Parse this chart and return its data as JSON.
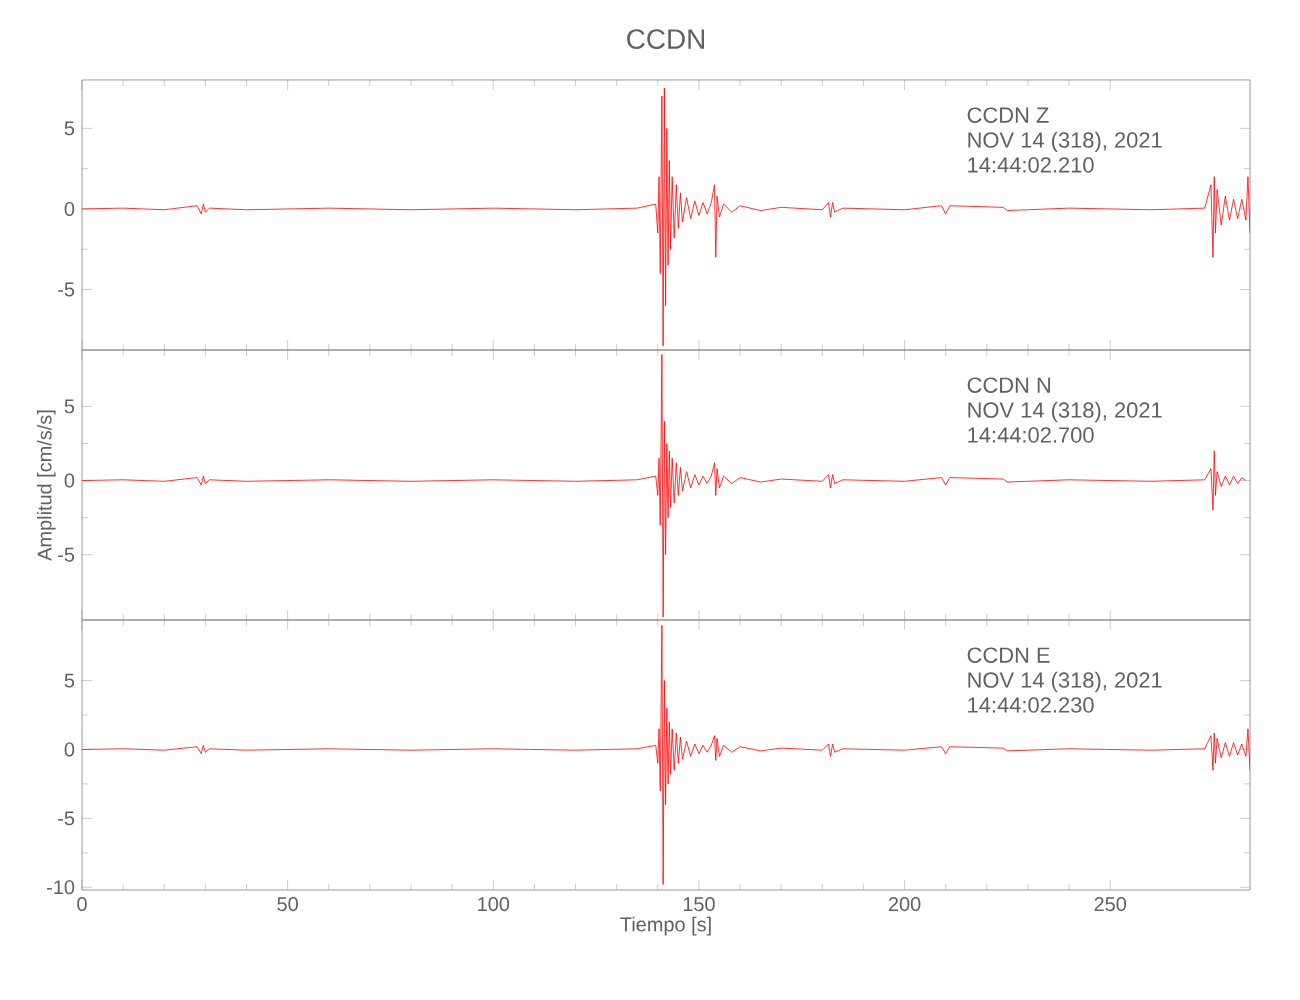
{
  "chart_data": [
    {
      "type": "line",
      "title": "CCDN",
      "annotations": [
        "CCDN Z",
        "NOV 14 (318), 2021",
        "14:44:02.210"
      ],
      "color": "#ff0000",
      "xlim": [
        0,
        284
      ],
      "ylim": [
        -8.75,
        8
      ],
      "xticks": [
        0,
        50,
        100,
        150,
        200,
        250
      ],
      "yticks": [
        -5,
        0,
        5
      ],
      "tick_labels": "y",
      "grid": false,
      "x": [
        0,
        10,
        20,
        28,
        29,
        29.5,
        30,
        31,
        40,
        60,
        80,
        100,
        120,
        135,
        139.5,
        140,
        140.3,
        140.6,
        141,
        141.3,
        141.6,
        141.9,
        142.2,
        142.5,
        142.8,
        143.1,
        143.5,
        144,
        144.5,
        145,
        145.5,
        146,
        147,
        148,
        149,
        150,
        151,
        152,
        153,
        153.8,
        154.1,
        154.4,
        155,
        156,
        158,
        160,
        165,
        170,
        180,
        181.5,
        182,
        182.5,
        183,
        185,
        200,
        209,
        210,
        211,
        224,
        225,
        240,
        260,
        273,
        274.5,
        275,
        275.3,
        275.6,
        276,
        277,
        278,
        279,
        280,
        281,
        282,
        283,
        283.5,
        284
      ],
      "values": [
        0,
        0.05,
        -0.05,
        0.2,
        -0.3,
        0.3,
        -0.2,
        0.05,
        -0.05,
        0.05,
        -0.05,
        0.05,
        -0.05,
        0.05,
        0.3,
        -1.5,
        2,
        -4,
        7,
        -8.5,
        7.5,
        -6,
        5,
        -3.5,
        3,
        -2.5,
        2,
        -1.8,
        1.5,
        -1.2,
        1,
        -0.8,
        0.7,
        -0.6,
        0.5,
        -0.4,
        0.4,
        -0.3,
        0.4,
        1.5,
        -3,
        0.8,
        -0.5,
        0.3,
        -0.2,
        0.2,
        -0.1,
        0.1,
        -0.05,
        0.4,
        -0.5,
        0.4,
        -0.2,
        0.05,
        -0.05,
        0.2,
        -0.3,
        0.2,
        0.1,
        -0.1,
        0.05,
        -0.05,
        0.05,
        1.5,
        -3,
        2,
        -1.5,
        1.2,
        -1,
        0.8,
        -0.7,
        0.6,
        -0.6,
        0.6,
        -0.7,
        2,
        -1.5
      ]
    },
    {
      "type": "line",
      "ylabel": "Amplitud [cm/s/s]",
      "annotations": [
        "CCDN N",
        "NOV 14 (318), 2021",
        "14:44:02.700"
      ],
      "color": "#ff0000",
      "xlim": [
        0,
        284
      ],
      "ylim": [
        -9.4,
        8.8
      ],
      "xticks": [
        0,
        50,
        100,
        150,
        200,
        250
      ],
      "yticks": [
        -5,
        0,
        5
      ],
      "tick_labels": "y",
      "grid": false,
      "x": [
        0,
        10,
        20,
        28,
        29,
        29.5,
        30,
        31,
        40,
        60,
        80,
        100,
        120,
        135,
        139.5,
        140,
        140.3,
        140.6,
        141,
        141.3,
        141.6,
        141.9,
        142.2,
        142.5,
        142.8,
        143.1,
        143.5,
        144,
        144.5,
        145,
        145.5,
        146,
        147,
        148,
        149,
        150,
        151,
        152,
        153,
        153.8,
        154.1,
        154.4,
        155,
        156,
        158,
        160,
        165,
        170,
        180,
        181.5,
        182,
        182.5,
        183,
        185,
        200,
        209,
        210,
        211,
        224,
        225,
        240,
        260,
        273,
        274.5,
        275,
        275.3,
        275.6,
        276,
        277,
        278,
        279,
        280,
        281,
        282,
        283
      ],
      "values": [
        0,
        0.05,
        -0.05,
        0.2,
        -0.3,
        0.3,
        -0.2,
        0.05,
        -0.05,
        0.05,
        -0.05,
        0.05,
        -0.05,
        0.05,
        0.3,
        -1,
        1.5,
        -3,
        8.5,
        -9.2,
        4,
        -5,
        2.5,
        -2.5,
        2,
        -1.8,
        1.5,
        -1.5,
        1.2,
        -1,
        0.9,
        -0.7,
        0.6,
        -0.5,
        0.4,
        -0.3,
        0.3,
        -0.2,
        0.3,
        1.2,
        -1,
        0.8,
        -0.5,
        0.3,
        -0.2,
        0.2,
        -0.1,
        0.1,
        -0.05,
        0.4,
        -0.5,
        0.4,
        -0.2,
        0.05,
        -0.05,
        0.2,
        -0.3,
        0.2,
        0.1,
        -0.1,
        0.05,
        -0.05,
        0.05,
        0.8,
        -2,
        2,
        -1,
        0.6,
        -0.4,
        0.3,
        -0.3,
        0.3,
        -0.2,
        0.2,
        0
      ]
    },
    {
      "type": "line",
      "xlabel": "Tiempo [s]",
      "annotations": [
        "CCDN E",
        "NOV 14 (318), 2021",
        "14:44:02.230"
      ],
      "color": "#ff0000",
      "xlim": [
        0,
        284
      ],
      "ylim": [
        -10.2,
        9.4
      ],
      "xticks": [
        0,
        50,
        100,
        150,
        200,
        250
      ],
      "yticks": [
        -10,
        -5,
        0,
        5
      ],
      "grid": false,
      "x": [
        0,
        10,
        20,
        28,
        29,
        29.5,
        30,
        31,
        40,
        60,
        80,
        100,
        120,
        135,
        139.5,
        140,
        140.3,
        140.6,
        141,
        141.3,
        141.6,
        141.9,
        142.2,
        142.5,
        142.8,
        143.1,
        143.5,
        144,
        144.5,
        145,
        145.5,
        146,
        147,
        148,
        149,
        150,
        151,
        152,
        153,
        153.8,
        154.1,
        154.4,
        155,
        156,
        158,
        160,
        165,
        170,
        180,
        181.5,
        182,
        182.5,
        183,
        185,
        200,
        209,
        210,
        211,
        224,
        225,
        240,
        260,
        273,
        274.5,
        275,
        275.3,
        275.6,
        276,
        277,
        278,
        279,
        280,
        281,
        282,
        283,
        283.5,
        284
      ],
      "values": [
        0,
        0.05,
        -0.05,
        0.2,
        -0.3,
        0.3,
        -0.2,
        0.05,
        -0.05,
        0.05,
        -0.05,
        0.05,
        -0.05,
        0.05,
        0.3,
        -1,
        1.5,
        -3,
        9,
        -9.8,
        5,
        -4,
        3,
        -2.5,
        2,
        -1.8,
        1.5,
        -1.5,
        1.2,
        -1,
        0.9,
        -0.7,
        0.6,
        -0.5,
        0.4,
        -0.3,
        0.3,
        -0.2,
        0.3,
        1,
        -0.8,
        0.8,
        -0.5,
        0.3,
        -0.2,
        0.2,
        -0.1,
        0.1,
        -0.05,
        0.4,
        -0.5,
        0.4,
        -0.2,
        0.05,
        -0.05,
        0.2,
        -0.3,
        0.2,
        0.1,
        -0.1,
        0.05,
        -0.05,
        0.05,
        1,
        -1.5,
        1.2,
        -1,
        0.8,
        -0.6,
        0.5,
        -0.5,
        0.5,
        -0.4,
        0.4,
        -0.5,
        1.5,
        -1.5
      ]
    }
  ]
}
